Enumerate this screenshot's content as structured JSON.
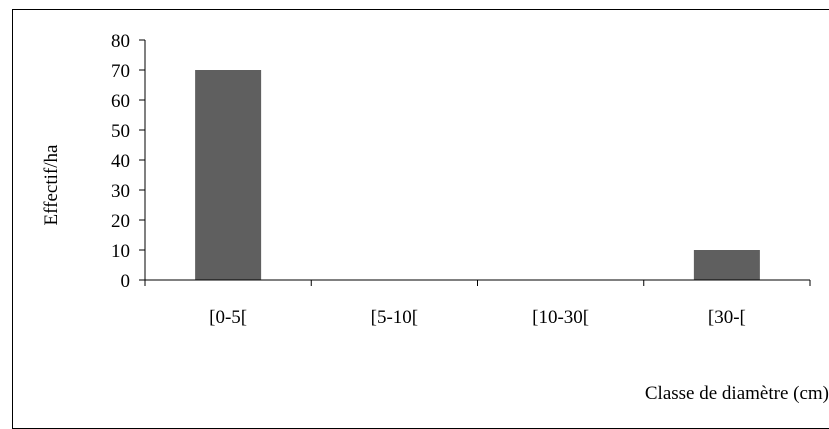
{
  "chart_data": {
    "type": "bar",
    "categories": [
      "[0-5[",
      "[5-10[",
      "[10-30[",
      "[30-["
    ],
    "values": [
      70,
      0,
      0,
      10
    ],
    "title": "",
    "xlabel": "Classe de diamètre (cm)",
    "ylabel": "Effectif/ha",
    "ylim": [
      0,
      80
    ],
    "yticks": [
      "0",
      "10",
      "20",
      "30",
      "40",
      "50",
      "60",
      "70",
      "80"
    ],
    "grid": false,
    "legend": "none",
    "bar_color": "#5f5f5f"
  }
}
